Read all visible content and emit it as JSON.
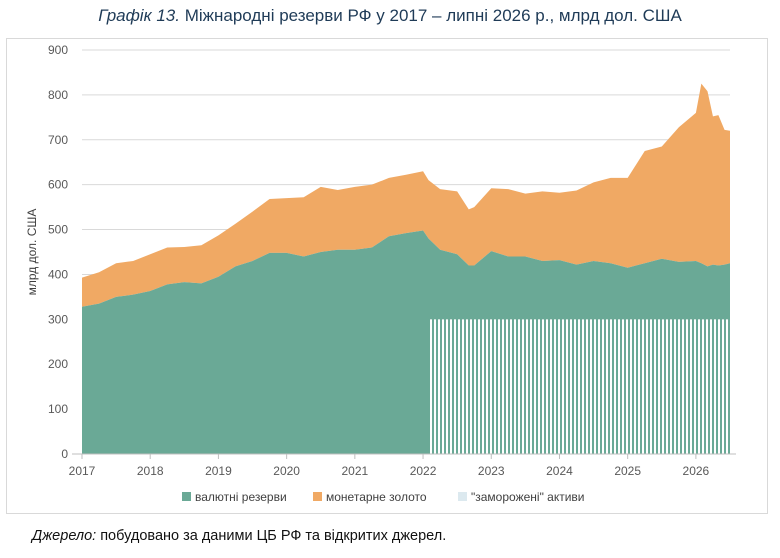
{
  "title": {
    "number": "Графік 13.",
    "text": "Міжнародні резерви РФ у 2017 – липні 2026 р., млрд дол. США"
  },
  "source": {
    "label": "Джерело:",
    "text": "побудовано за даними ЦБ РФ та відкритих джерел."
  },
  "colors": {
    "fx": "#6aa996",
    "gold": "#f0a964",
    "frozen": "#dce9ef"
  },
  "chart_data": {
    "type": "area",
    "stacked": true,
    "ylabel": "млрд дол. США",
    "ylim": [
      0,
      900
    ],
    "yticks": [
      0,
      100,
      200,
      300,
      400,
      500,
      600,
      700,
      800,
      900
    ],
    "xlim": [
      2017,
      2026.5
    ],
    "xticks": [
      2017,
      2018,
      2019,
      2020,
      2021,
      2022,
      2023,
      2024,
      2025,
      2026
    ],
    "grid": true,
    "legend_position": "bottom",
    "x": [
      2017.0,
      2017.25,
      2017.5,
      2017.75,
      2018.0,
      2018.25,
      2018.5,
      2018.75,
      2019.0,
      2019.25,
      2019.5,
      2019.75,
      2020.0,
      2020.25,
      2020.5,
      2020.75,
      2021.0,
      2021.25,
      2021.5,
      2021.75,
      2022.0,
      2022.08,
      2022.25,
      2022.5,
      2022.67,
      2022.75,
      2023.0,
      2023.25,
      2023.5,
      2023.75,
      2024.0,
      2024.25,
      2024.5,
      2024.75,
      2025.0,
      2025.25,
      2025.5,
      2025.75,
      2026.0,
      2026.08,
      2026.17,
      2026.25,
      2026.33,
      2026.42,
      2026.5
    ],
    "series": [
      {
        "name": "валютні резерви",
        "values": [
          328,
          335,
          350,
          355,
          363,
          378,
          383,
          380,
          395,
          418,
          430,
          448,
          448,
          440,
          450,
          455,
          455,
          460,
          485,
          492,
          498,
          480,
          455,
          445,
          420,
          420,
          452,
          440,
          440,
          430,
          432,
          422,
          430,
          425,
          415,
          425,
          435,
          428,
          430,
          425,
          418,
          422,
          420,
          422,
          425
        ]
      },
      {
        "name": "монетарне золото",
        "values": [
          65,
          70,
          75,
          75,
          82,
          82,
          78,
          85,
          92,
          95,
          110,
          120,
          122,
          132,
          145,
          133,
          140,
          140,
          130,
          130,
          132,
          130,
          135,
          140,
          125,
          130,
          140,
          150,
          140,
          155,
          150,
          165,
          175,
          190,
          200,
          250,
          250,
          300,
          330,
          400,
          390,
          330,
          335,
          300,
          295
        ]
      }
    ],
    "frozen": {
      "name": "\"заморожені\" активи",
      "x_start": 2022.08,
      "x_end": 2026.5,
      "value": 300
    }
  }
}
